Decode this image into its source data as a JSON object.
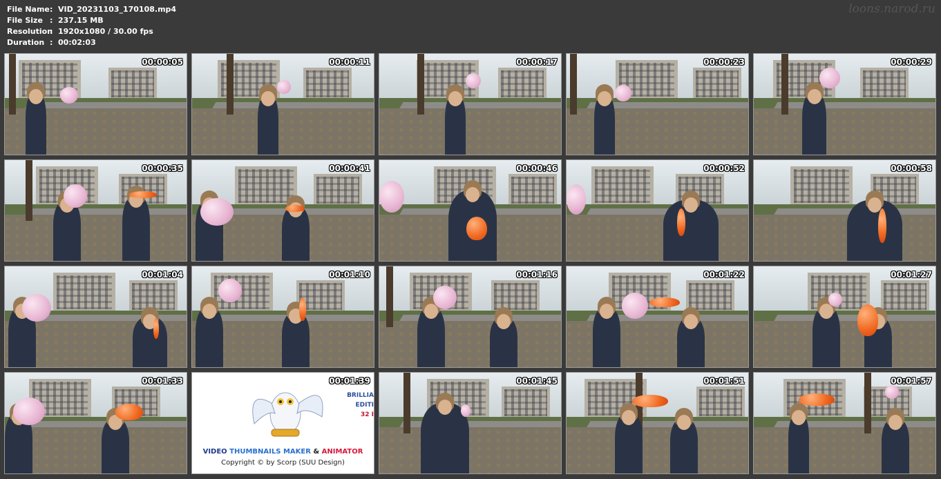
{
  "header": {
    "rows": [
      {
        "key": "File Name",
        "sep": ":",
        "value": "VID_20231103_170108.mp4"
      },
      {
        "key": "File Size",
        "sep": ":",
        "value": "237.15 MB"
      },
      {
        "key": "Resolution",
        "sep": ":",
        "value": "1920x1080 / 30.00 fps"
      },
      {
        "key": "Duration",
        "sep": ":",
        "value": "00:02:03"
      }
    ]
  },
  "watermark": "loons.narod.ru",
  "thumbnails": [
    {
      "time": "00:00:05"
    },
    {
      "time": "00:00:11"
    },
    {
      "time": "00:00:17"
    },
    {
      "time": "00:00:23"
    },
    {
      "time": "00:00:29"
    },
    {
      "time": "00:00:35"
    },
    {
      "time": "00:00:41"
    },
    {
      "time": "00:00:46"
    },
    {
      "time": "00:00:52"
    },
    {
      "time": "00:00:58"
    },
    {
      "time": "00:01:04"
    },
    {
      "time": "00:01:10"
    },
    {
      "time": "00:01:16"
    },
    {
      "time": "00:01:22"
    },
    {
      "time": "00:01:27"
    },
    {
      "time": "00:01:33"
    },
    {
      "time": "00:01:39"
    },
    {
      "time": "00:01:45"
    },
    {
      "time": "00:01:51"
    },
    {
      "time": "00:01:57"
    }
  ],
  "ad": {
    "title_w1": "VIDEO",
    "title_w2": "THUMBNAILS MAKER",
    "title_w3": "&",
    "title_w4": "ANIMATOR",
    "copyright": "Copyright © by Scorp (SUU Design)",
    "brilliant": "BRILLIA",
    "edition": "EDITI",
    "bits": "32 I"
  },
  "colors": {
    "background": "#3a3a3a",
    "timestamp": "#ffffff",
    "pink_balloon": "#e7b5d2",
    "orange_balloon": "#f06a22"
  }
}
